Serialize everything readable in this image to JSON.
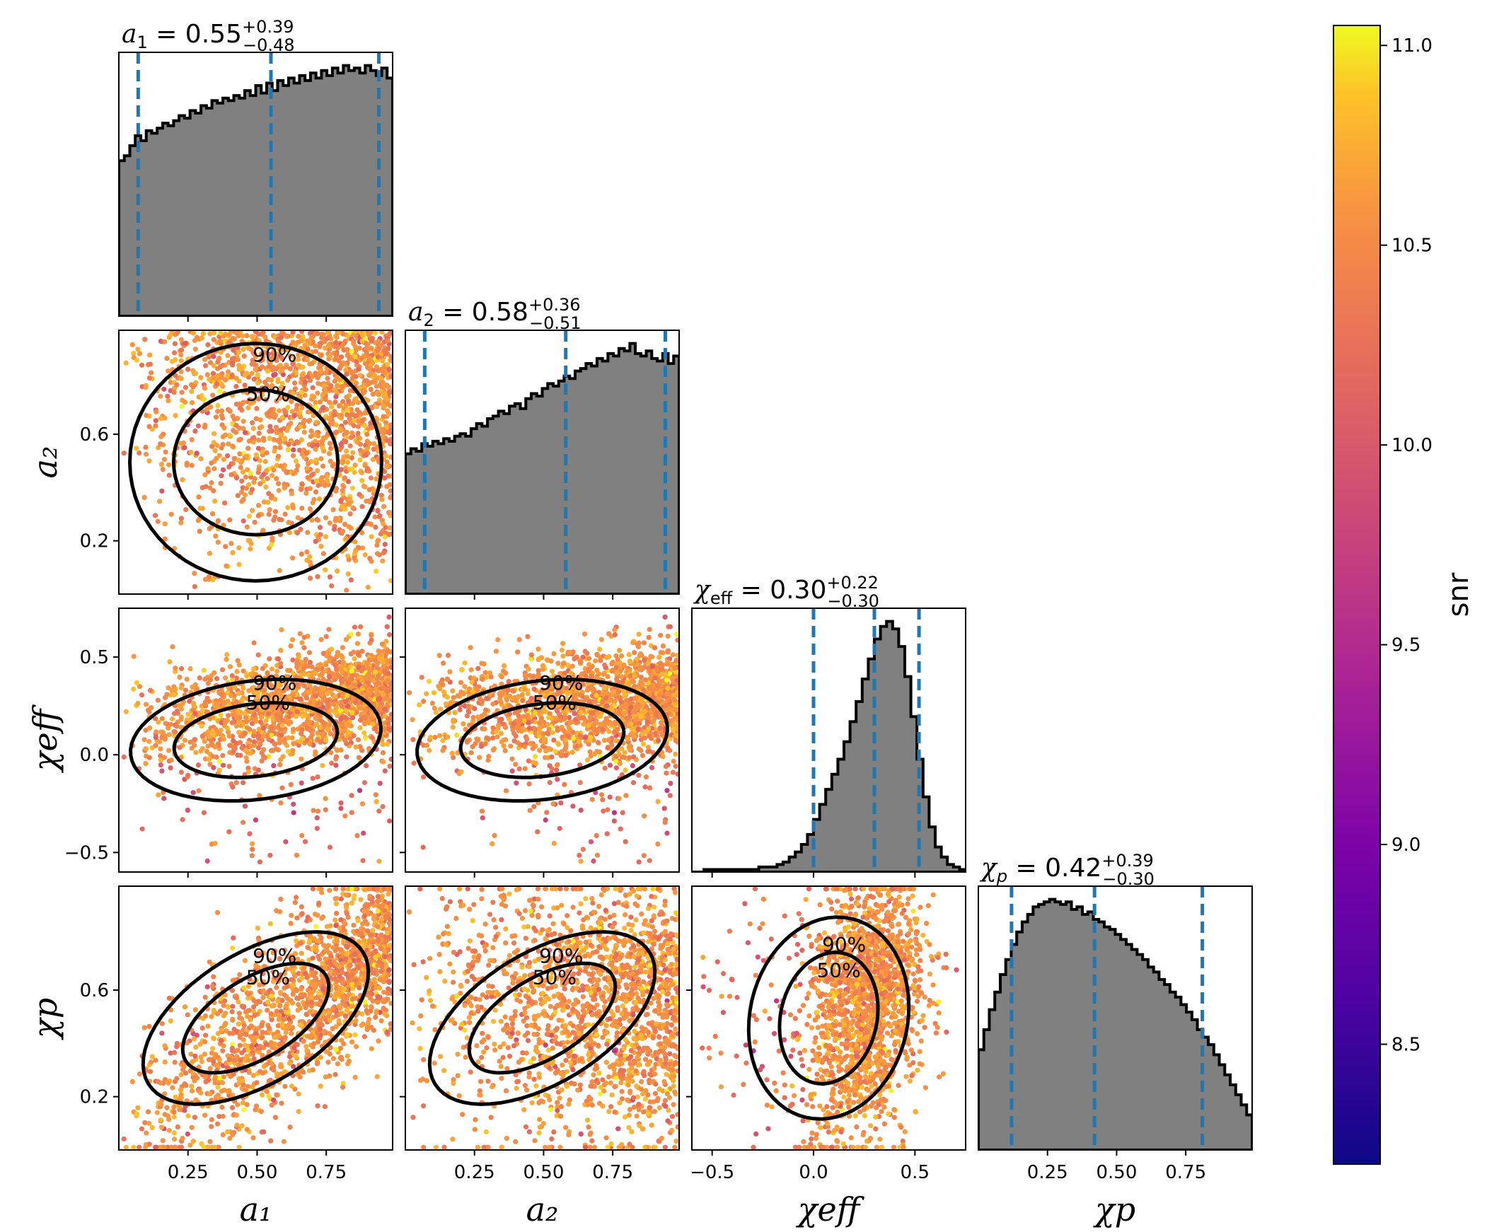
{
  "chart_data": {
    "type": "corner",
    "parameters": [
      "a1",
      "a2",
      "chi_eff",
      "chi_p"
    ],
    "axis_labels": {
      "a1": "a₁",
      "a2": "a₂",
      "chi_eff": "χeff",
      "chi_p": "χp"
    },
    "ranges": {
      "a1": [
        0.0,
        0.99
      ],
      "a2": [
        0.0,
        0.99
      ],
      "chi_eff": [
        -0.6,
        0.75
      ],
      "chi_p": [
        0.0,
        0.99
      ]
    },
    "ticks": {
      "a1": {
        "values": [
          0.25,
          0.5,
          0.75
        ],
        "labels": [
          "0.25",
          "0.50",
          "0.75"
        ]
      },
      "a2": {
        "values": [
          0.2,
          0.6
        ],
        "labels": [
          "0.2",
          "0.6"
        ],
        "x_values": [
          0.25,
          0.5,
          0.75
        ],
        "x_labels": [
          "0.25",
          "0.50",
          "0.75"
        ]
      },
      "chi_eff": {
        "values": [
          -0.5,
          0.0,
          0.5
        ],
        "labels": [
          "−0.5",
          "0.0",
          "0.5"
        ]
      },
      "chi_p": {
        "values": [
          0.2,
          0.6
        ],
        "labels": [
          "0.2",
          "0.6"
        ],
        "x_values": [
          0.25,
          0.5,
          0.75
        ],
        "x_labels": [
          "0.25",
          "0.50",
          "0.75"
        ]
      }
    },
    "summary": {
      "a1": {
        "median": 0.55,
        "plus": 0.39,
        "minus": 0.48,
        "title_name": "a",
        "title_sub": "1",
        "value": "0.55",
        "up": "+0.39",
        "down": "−0.48"
      },
      "a2": {
        "median": 0.58,
        "plus": 0.36,
        "minus": 0.51,
        "title_name": "a",
        "title_sub": "2",
        "value": "0.58",
        "up": "+0.36",
        "down": "−0.51"
      },
      "chi_eff": {
        "median": 0.3,
        "plus": 0.22,
        "minus": 0.3,
        "title_name": "χ",
        "title_sub": "eff",
        "value": "0.30",
        "up": "+0.22",
        "down": "−0.30"
      },
      "chi_p": {
        "median": 0.42,
        "plus": 0.39,
        "minus": 0.3,
        "title_name": "χ",
        "title_sub": "p",
        "value": "0.42",
        "up": "+0.39",
        "down": "−0.30"
      }
    },
    "histograms": {
      "a1": [
        0.62,
        0.64,
        0.68,
        0.72,
        0.7,
        0.74,
        0.73,
        0.75,
        0.77,
        0.76,
        0.78,
        0.8,
        0.79,
        0.82,
        0.81,
        0.84,
        0.83,
        0.86,
        0.85,
        0.87,
        0.86,
        0.88,
        0.87,
        0.9,
        0.88,
        0.92,
        0.89,
        0.93,
        0.9,
        0.94,
        0.92,
        0.95,
        0.93,
        0.96,
        0.94,
        0.97,
        0.95,
        0.98,
        0.96,
        0.99,
        0.97,
        1.0,
        0.98,
        0.99,
        0.97,
        1.0,
        0.98,
        0.96,
        0.99,
        0.95
      ],
      "a2": [
        0.56,
        0.58,
        0.57,
        0.6,
        0.59,
        0.61,
        0.6,
        0.62,
        0.61,
        0.63,
        0.64,
        0.63,
        0.66,
        0.68,
        0.67,
        0.7,
        0.71,
        0.73,
        0.72,
        0.75,
        0.76,
        0.74,
        0.78,
        0.8,
        0.79,
        0.82,
        0.84,
        0.83,
        0.85,
        0.87,
        0.86,
        0.89,
        0.9,
        0.92,
        0.91,
        0.94,
        0.93,
        0.96,
        0.95,
        0.98,
        0.97,
        1.0,
        0.96,
        0.95,
        0.97,
        0.94,
        0.93,
        0.96,
        0.92,
        0.95
      ],
      "chi_eff_bins": [
        -0.6,
        0.75
      ],
      "chi_eff": [
        0.0,
        0.0,
        0.01,
        0.01,
        0.01,
        0.01,
        0.01,
        0.01,
        0.01,
        0.01,
        0.01,
        0.02,
        0.02,
        0.02,
        0.03,
        0.04,
        0.06,
        0.08,
        0.11,
        0.15,
        0.21,
        0.27,
        0.33,
        0.39,
        0.45,
        0.52,
        0.6,
        0.68,
        0.77,
        0.85,
        0.93,
        0.98,
        1.0,
        0.97,
        0.9,
        0.78,
        0.62,
        0.45,
        0.3,
        0.18,
        0.1,
        0.06,
        0.03,
        0.02,
        0.01
      ],
      "chi_p": [
        0.4,
        0.48,
        0.56,
        0.63,
        0.7,
        0.76,
        0.82,
        0.87,
        0.91,
        0.94,
        0.97,
        0.98,
        0.99,
        1.0,
        0.99,
        0.98,
        0.99,
        0.96,
        0.97,
        0.94,
        0.95,
        0.92,
        0.91,
        0.89,
        0.88,
        0.86,
        0.84,
        0.82,
        0.8,
        0.78,
        0.76,
        0.73,
        0.71,
        0.68,
        0.66,
        0.63,
        0.61,
        0.58,
        0.55,
        0.52,
        0.48,
        0.45,
        0.42,
        0.38,
        0.34,
        0.3,
        0.26,
        0.22,
        0.18,
        0.14
      ]
    },
    "contour_levels": [
      "50%",
      "90%"
    ],
    "colorbar": {
      "label": "snr",
      "range": [
        8.2,
        11.05
      ],
      "ticks": [
        8.5,
        9.0,
        9.5,
        10.0,
        10.5,
        11.0
      ],
      "tick_labels": [
        "8.5",
        "9.0",
        "9.5",
        "10.0",
        "10.5",
        "11.0"
      ],
      "colormap": "plasma"
    },
    "colors": {
      "hist_fill": "#808080",
      "quantile_line": "#1f77b4",
      "contour": "#000000"
    }
  }
}
